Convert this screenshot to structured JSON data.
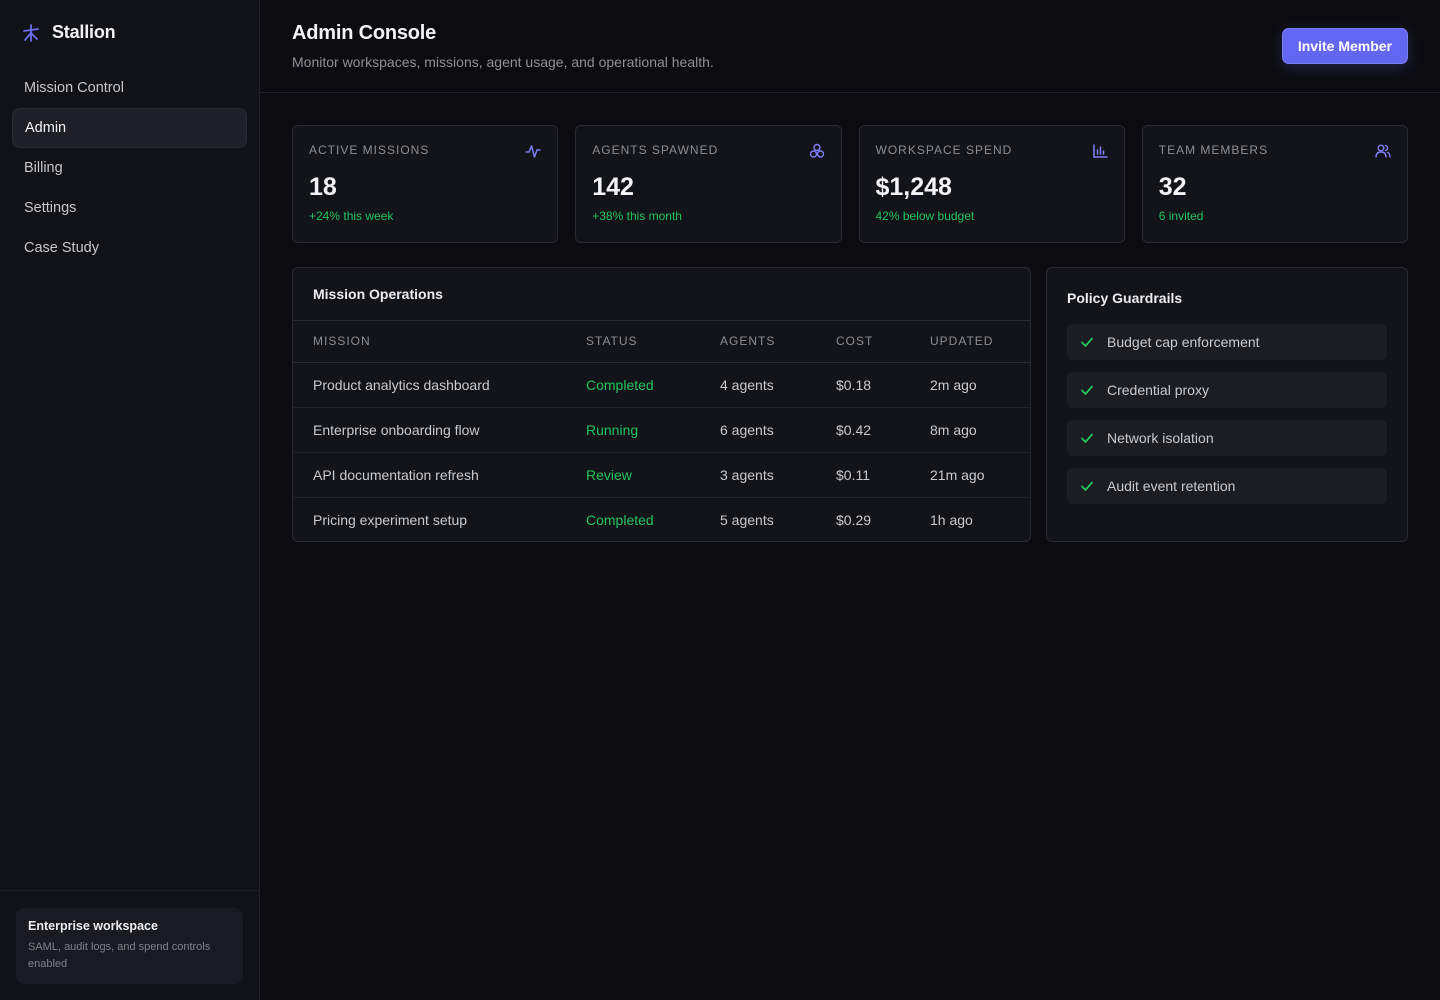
{
  "brand": {
    "name": "Stallion",
    "icon": "sparkle-icon",
    "accent": "#6366f1"
  },
  "sidebar": {
    "items": [
      {
        "label": "Mission Control",
        "active": false
      },
      {
        "label": "Admin",
        "active": true
      },
      {
        "label": "Billing",
        "active": false
      },
      {
        "label": "Settings",
        "active": false
      },
      {
        "label": "Case Study",
        "active": false
      }
    ],
    "workspace": {
      "title": "Enterprise workspace",
      "description": "SAML, audit logs, and spend controls enabled"
    }
  },
  "header": {
    "title": "Admin Console",
    "subtitle": "Monitor workspaces, missions, agent usage, and operational health.",
    "invite_label": "Invite Member"
  },
  "stats": [
    {
      "label": "Active Missions",
      "value": "18",
      "delta": "+24% this week",
      "icon": "activity-icon"
    },
    {
      "label": "Agents Spawned",
      "value": "142",
      "delta": "+38% this month",
      "icon": "cluster-icon"
    },
    {
      "label": "Workspace Spend",
      "value": "$1,248",
      "delta": "42% below budget",
      "icon": "bar-chart-icon"
    },
    {
      "label": "Team Members",
      "value": "32",
      "delta": "6 invited",
      "icon": "users-icon"
    }
  ],
  "operations": {
    "title": "Mission Operations",
    "columns": [
      "MISSION",
      "STATUS",
      "AGENTS",
      "COST",
      "UPDATED"
    ],
    "rows": [
      {
        "mission": "Product analytics dashboard",
        "status": "Completed",
        "agents": "4 agents",
        "cost": "$0.18",
        "updated": "2m ago"
      },
      {
        "mission": "Enterprise onboarding flow",
        "status": "Running",
        "agents": "6 agents",
        "cost": "$0.42",
        "updated": "8m ago"
      },
      {
        "mission": "API documentation refresh",
        "status": "Review",
        "agents": "3 agents",
        "cost": "$0.11",
        "updated": "21m ago"
      },
      {
        "mission": "Pricing experiment setup",
        "status": "Completed",
        "agents": "5 agents",
        "cost": "$0.29",
        "updated": "1h ago"
      }
    ]
  },
  "policy": {
    "title": "Policy Guardrails",
    "items": [
      {
        "label": "Budget cap enforcement"
      },
      {
        "label": "Credential proxy"
      },
      {
        "label": "Network isolation"
      },
      {
        "label": "Audit event retention"
      }
    ]
  },
  "colors": {
    "positive": "#22c55e",
    "accent": "#6366f1",
    "background": "#0c0c10",
    "sidebar": "#111118"
  }
}
